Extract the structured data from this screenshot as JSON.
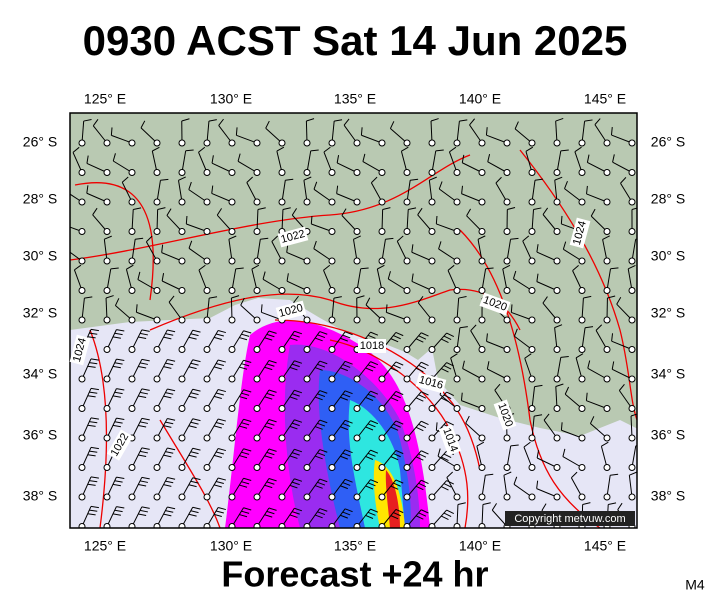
{
  "header": {
    "title": "0930 ACST Sat 14 Jun 2025"
  },
  "axes": {
    "lon_labels": [
      "125° E",
      "130° E",
      "135° E",
      "140° E",
      "145° E"
    ],
    "lat_labels": [
      "26° S",
      "28° S",
      "30° S",
      "32° S",
      "34° S",
      "36° S",
      "38° S"
    ]
  },
  "contour_labels": [
    "1022",
    "1020",
    "1018",
    "1016",
    "1020",
    "1024",
    "1024",
    "1022",
    "1020",
    "1014"
  ],
  "copyright": "Copyright metvuw.com",
  "footer": {
    "forecast": "Forecast +24 hr",
    "code": "M4"
  }
}
